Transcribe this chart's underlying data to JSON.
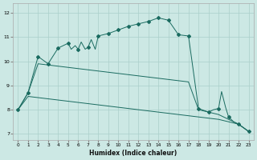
{
  "xlabel": "Humidex (Indice chaleur)",
  "bg_color": "#cce8e4",
  "grid_color": "#aacfca",
  "line_color": "#1a6b60",
  "xlim": [
    -0.5,
    23.5
  ],
  "ylim": [
    6.75,
    12.4
  ],
  "yticks": [
    7,
    8,
    9,
    10,
    11,
    12
  ],
  "xticks": [
    0,
    1,
    2,
    3,
    4,
    5,
    6,
    7,
    8,
    9,
    10,
    11,
    12,
    13,
    14,
    15,
    16,
    17,
    18,
    19,
    20,
    21,
    22,
    23
  ],
  "curve1_x": [
    0,
    1,
    2,
    3,
    4,
    5,
    5.3,
    5.7,
    6,
    6.3,
    6.7,
    7,
    7.3,
    7.7,
    8,
    9,
    10,
    11,
    12,
    13,
    14,
    15,
    16,
    17,
    18,
    19,
    19.5,
    20,
    20.3,
    20.7,
    21,
    21.5,
    22,
    23
  ],
  "curve1_y": [
    8.0,
    8.7,
    10.2,
    9.9,
    10.55,
    10.75,
    10.5,
    10.65,
    10.5,
    10.8,
    10.5,
    10.6,
    10.9,
    10.5,
    11.05,
    11.15,
    11.3,
    11.45,
    11.55,
    11.65,
    11.8,
    11.7,
    11.1,
    11.05,
    8.05,
    7.9,
    8.0,
    8.05,
    8.75,
    8.1,
    7.7,
    7.5,
    7.4,
    7.1
  ],
  "curve2_x": [
    0,
    1,
    2,
    3,
    4,
    5,
    6,
    7,
    8,
    9,
    10,
    11,
    12,
    13,
    14,
    15,
    16,
    17,
    18,
    19,
    20,
    21,
    22,
    23
  ],
  "curve2_y": [
    8.0,
    8.55,
    8.5,
    8.45,
    8.4,
    8.35,
    8.3,
    8.25,
    8.2,
    8.15,
    8.1,
    8.05,
    8.0,
    7.95,
    7.9,
    7.85,
    7.8,
    7.75,
    7.7,
    7.65,
    7.6,
    7.5,
    7.4,
    7.1
  ],
  "curve3_x": [
    0,
    1,
    2,
    3,
    4,
    5,
    6,
    7,
    8,
    9,
    10,
    11,
    12,
    13,
    14,
    15,
    16,
    17,
    18,
    19,
    20,
    21,
    22,
    23
  ],
  "curve3_y": [
    8.0,
    8.7,
    9.9,
    9.85,
    9.8,
    9.75,
    9.7,
    9.65,
    9.6,
    9.55,
    9.5,
    9.45,
    9.4,
    9.35,
    9.3,
    9.25,
    9.2,
    9.15,
    8.0,
    7.9,
    7.8,
    7.6,
    7.4,
    7.1
  ],
  "marker_x1": [
    0,
    1,
    2,
    3,
    4,
    5,
    6,
    7,
    8,
    9,
    10,
    11,
    12,
    13,
    14,
    15,
    16,
    17,
    18,
    19,
    20,
    21,
    22,
    23
  ],
  "marker_y1": [
    8.0,
    8.7,
    10.2,
    9.9,
    10.55,
    10.75,
    10.5,
    10.6,
    11.05,
    11.15,
    11.3,
    11.45,
    11.55,
    11.65,
    11.8,
    11.7,
    11.1,
    11.05,
    8.05,
    7.9,
    8.05,
    7.7,
    7.4,
    7.1
  ]
}
